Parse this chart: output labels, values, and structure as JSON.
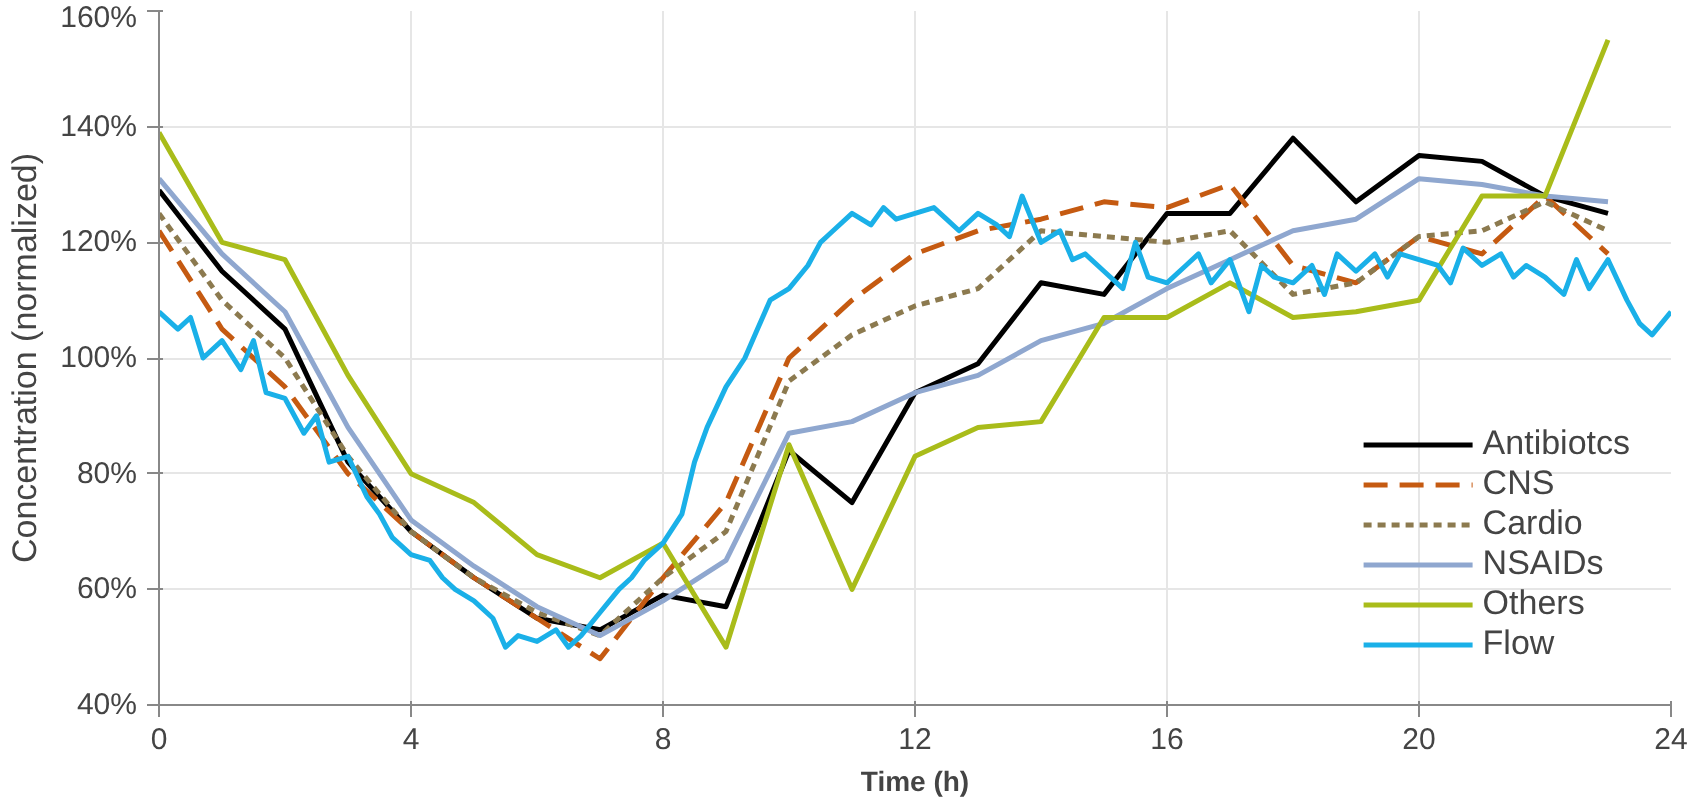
{
  "chart_data": {
    "type": "line",
    "xlabel": "Time (h)",
    "ylabel": "Concentration (normalized)",
    "x": [
      0,
      1,
      2,
      3,
      4,
      5,
      6,
      7,
      8,
      9,
      10,
      11,
      12,
      13,
      14,
      15,
      16,
      17,
      18,
      19,
      20,
      21,
      22,
      23
    ],
    "xlim": [
      0,
      24
    ],
    "xticks": [
      0,
      4,
      8,
      12,
      16,
      20,
      24
    ],
    "ylim": [
      40,
      160
    ],
    "yticks": [
      {
        "value": 40,
        "label": "40%"
      },
      {
        "value": 60,
        "label": "60%"
      },
      {
        "value": 80,
        "label": "80%"
      },
      {
        "value": 100,
        "label": "100%"
      },
      {
        "value": 120,
        "label": "120%"
      },
      {
        "value": 140,
        "label": "140%"
      },
      {
        "value": 160,
        "label": "160%"
      }
    ],
    "grid": true,
    "legend": "bottom right",
    "marker": "none",
    "series": [
      {
        "name": "Antibiotcs",
        "color": "#000000",
        "line_style": "solid",
        "values": [
          129,
          115,
          105,
          82,
          70,
          62,
          55,
          53,
          59,
          57,
          84,
          75,
          94,
          99,
          113,
          111,
          125,
          125,
          138,
          127,
          135,
          134,
          128,
          125
        ]
      },
      {
        "name": "CNS",
        "color": "#c55a11",
        "line_style": "dashed",
        "values": [
          122,
          105,
          95,
          80,
          70,
          62,
          55,
          48,
          62,
          75,
          100,
          110,
          118,
          122,
          124,
          127,
          126,
          130,
          116,
          113,
          121,
          118,
          128,
          118
        ]
      },
      {
        "name": "Cardio",
        "color": "#8c7a4f",
        "line_style": "dotted",
        "values": [
          125,
          110,
          100,
          83,
          70,
          62,
          56,
          52,
          62,
          70,
          96,
          104,
          109,
          112,
          122,
          121,
          120,
          122,
          111,
          113,
          121,
          122,
          127,
          122
        ]
      },
      {
        "name": "NSAIDs",
        "color": "#8fa7cf",
        "line_style": "solid",
        "values": [
          131,
          118,
          108,
          88,
          72,
          64,
          57,
          52,
          58,
          65,
          87,
          89,
          94,
          97,
          103,
          106,
          112,
          117,
          122,
          124,
          131,
          130,
          128,
          127
        ]
      },
      {
        "name": "Others",
        "color": "#a9bc1a",
        "line_style": "solid",
        "values": [
          139,
          120,
          117,
          97,
          80,
          75,
          66,
          62,
          68,
          50,
          85,
          60,
          83,
          88,
          89,
          107,
          107,
          113,
          107,
          108,
          110,
          128,
          128,
          155
        ]
      },
      {
        "name": "Flow",
        "color": "#1ab0e8",
        "line_style": "solid",
        "x": [
          0,
          0.3,
          0.5,
          0.7,
          1,
          1.3,
          1.5,
          1.7,
          2,
          2.3,
          2.5,
          2.7,
          3,
          3.3,
          3.5,
          3.7,
          4,
          4.3,
          4.5,
          4.7,
          5,
          5.3,
          5.5,
          5.7,
          6,
          6.3,
          6.5,
          6.7,
          7,
          7.3,
          7.5,
          7.7,
          8,
          8.3,
          8.5,
          8.7,
          9,
          9.3,
          9.5,
          9.7,
          10,
          10.3,
          10.5,
          10.7,
          11,
          11.3,
          11.5,
          11.7,
          12,
          12.3,
          12.5,
          12.7,
          13,
          13.3,
          13.5,
          13.7,
          14,
          14.3,
          14.5,
          14.7,
          15,
          15.3,
          15.5,
          15.7,
          16,
          16.3,
          16.5,
          16.7,
          17,
          17.3,
          17.5,
          17.7,
          18,
          18.3,
          18.5,
          18.7,
          19,
          19.3,
          19.5,
          19.7,
          20,
          20.3,
          20.5,
          20.7,
          21,
          21.3,
          21.5,
          21.7,
          22,
          22.3,
          22.5,
          22.7,
          23,
          23.3,
          23.5,
          23.7,
          24
        ],
        "values": [
          108,
          105,
          107,
          100,
          103,
          98,
          103,
          94,
          93,
          87,
          90,
          82,
          83,
          76,
          73,
          69,
          66,
          65,
          62,
          60,
          58,
          55,
          50,
          52,
          51,
          53,
          50,
          52,
          56,
          60,
          62,
          65,
          68,
          73,
          82,
          88,
          95,
          100,
          105,
          110,
          112,
          116,
          120,
          122,
          125,
          123,
          126,
          124,
          125,
          126,
          124,
          122,
          125,
          123,
          121,
          128,
          120,
          122,
          117,
          118,
          115,
          112,
          120,
          114,
          113,
          116,
          118,
          113,
          117,
          108,
          116,
          114,
          113,
          116,
          111,
          118,
          115,
          118,
          114,
          118,
          117,
          116,
          113,
          119,
          116,
          118,
          114,
          116,
          114,
          111,
          117,
          112,
          117,
          110,
          106,
          104,
          108
        ]
      }
    ]
  }
}
